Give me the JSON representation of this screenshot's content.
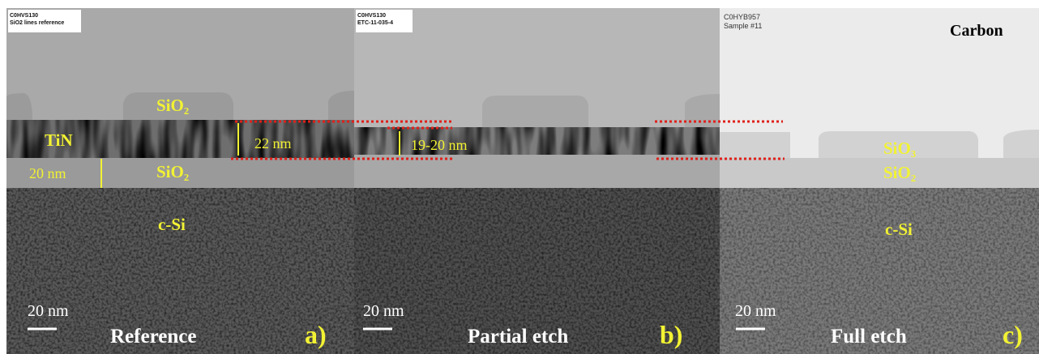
{
  "panels": [
    {
      "header_line1": "C0HVS130",
      "header_line2": "SiO2 lines reference",
      "lines_label": "SiO₂",
      "tin_label": "TiN",
      "tin_thickness": "22 nm",
      "oxide_thickness": "20 nm",
      "oxide_label": "SiO₂",
      "substrate_label": "c-Si",
      "scale_bar": "20 nm",
      "caption": "Reference",
      "letter": "a)"
    },
    {
      "header_line1": "C0HVS130",
      "header_line2": "ETC-11-035-4",
      "tin_thickness": "19-20 nm",
      "scale_bar": "20 nm",
      "caption": "Partial etch",
      "letter": "b)"
    },
    {
      "header_line1": "C0HYB957",
      "header_line2": "Sample #11",
      "top_label": "Carbon",
      "lines_label": "SiO₃",
      "oxide_label": "SiO₂",
      "substrate_label": "c-Si",
      "scale_bar": "20 nm",
      "caption": "Full etch",
      "letter": "c)"
    }
  ]
}
